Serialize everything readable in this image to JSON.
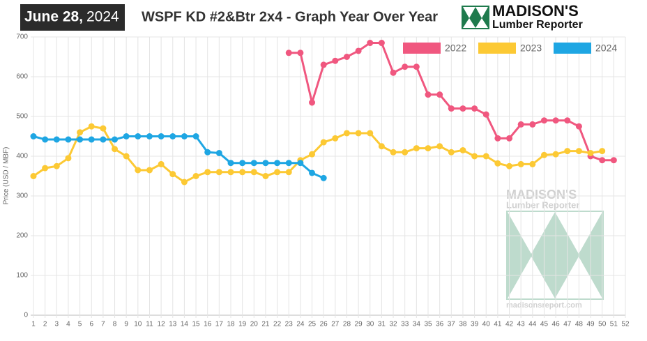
{
  "header": {
    "date_bold": "June 28,",
    "date_year": "2024",
    "logo_name": "MADISON'S",
    "logo_sub": "Lumber Reporter"
  },
  "watermark": {
    "name": "MADISON'S",
    "sub": "Lumber Reporter",
    "url": "madisonsreport.com"
  },
  "chart_data": {
    "type": "line",
    "title": "WSPF KD #2&Btr 2x4 - Graph Year Over Year",
    "y_label": "Price (USD / MBF)",
    "categories": [
      1,
      2,
      3,
      4,
      5,
      6,
      7,
      8,
      9,
      10,
      11,
      12,
      13,
      14,
      15,
      16,
      17,
      18,
      19,
      20,
      21,
      22,
      23,
      24,
      25,
      26,
      27,
      28,
      29,
      30,
      31,
      32,
      33,
      34,
      35,
      36,
      37,
      38,
      39,
      40,
      41,
      42,
      43,
      44,
      45,
      46,
      47,
      48,
      49,
      50,
      51,
      52
    ],
    "ylim": [
      0,
      700
    ],
    "yticks": [
      0,
      100,
      200,
      300,
      400,
      500,
      600,
      700
    ],
    "grid": true,
    "legend": "top-right",
    "series": [
      {
        "name": "2022",
        "color": "#f0577f",
        "values": [
          null,
          null,
          null,
          null,
          null,
          null,
          null,
          null,
          null,
          null,
          null,
          null,
          null,
          null,
          null,
          null,
          null,
          null,
          null,
          null,
          null,
          null,
          660,
          660,
          535,
          630,
          640,
          650,
          665,
          685,
          685,
          610,
          625,
          625,
          555,
          555,
          520,
          520,
          520,
          505,
          445,
          445,
          480,
          480,
          490,
          490,
          490,
          475,
          400,
          390,
          390,
          null
        ]
      },
      {
        "name": "2023",
        "color": "#fcc934",
        "values": [
          350,
          370,
          375,
          395,
          460,
          475,
          470,
          418,
          400,
          365,
          365,
          380,
          355,
          335,
          350,
          360,
          360,
          360,
          360,
          360,
          350,
          360,
          360,
          390,
          405,
          435,
          445,
          458,
          458,
          458,
          425,
          410,
          410,
          420,
          420,
          425,
          410,
          415,
          400,
          400,
          382,
          375,
          380,
          380,
          403,
          405,
          413,
          413,
          408,
          413,
          null,
          null
        ]
      },
      {
        "name": "2024",
        "color": "#1ea6e3",
        "values": [
          450,
          442,
          442,
          442,
          442,
          442,
          442,
          442,
          450,
          450,
          450,
          450,
          450,
          450,
          450,
          410,
          408,
          383,
          383,
          383,
          383,
          383,
          383,
          383,
          358,
          345,
          null,
          null,
          null,
          null,
          null,
          null,
          null,
          null,
          null,
          null,
          null,
          null,
          null,
          null,
          null,
          null,
          null,
          null,
          null,
          null,
          null,
          null,
          null,
          null,
          null,
          null
        ]
      }
    ]
  }
}
